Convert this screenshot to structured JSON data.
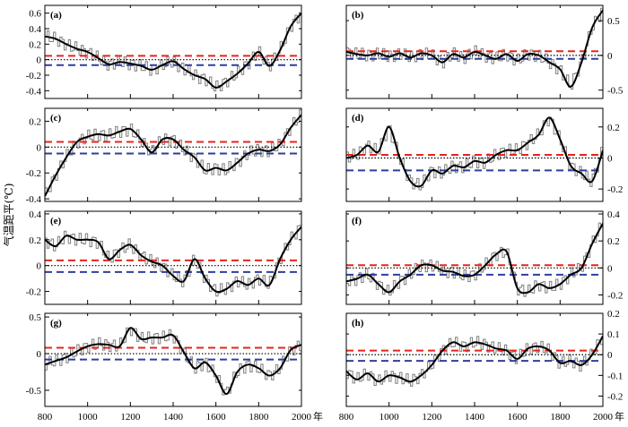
{
  "figure": {
    "ylabel": "气温距平(℃)",
    "xunit": "年",
    "xticks": [
      800,
      1000,
      1200,
      1400,
      1600,
      1800,
      2000
    ],
    "xlim": [
      800,
      2000
    ]
  },
  "colors": {
    "upper_ref": "#e8231c",
    "lower_ref": "#2b3f9e",
    "smooth": "#000000",
    "decadal": "#7f7f7f",
    "zero": "#000000"
  },
  "chart_data": [
    {
      "type": "line",
      "label": "(a)",
      "axis_side": "left",
      "ylim": [
        -0.5,
        0.7
      ],
      "yticks": [
        0.6,
        0.4,
        0.2,
        0,
        -0.2,
        -0.4
      ],
      "upper_ref": 0.05,
      "lower_ref": -0.07,
      "series": [
        {
          "name": "smoothed",
          "x": [
            800,
            850,
            900,
            950,
            1000,
            1050,
            1100,
            1150,
            1200,
            1250,
            1300,
            1350,
            1400,
            1450,
            1500,
            1550,
            1600,
            1650,
            1700,
            1750,
            1800,
            1850,
            1900,
            1950,
            2000
          ],
          "values": [
            0.3,
            0.27,
            0.2,
            0.14,
            0.1,
            0.02,
            -0.06,
            -0.03,
            -0.05,
            -0.08,
            -0.13,
            -0.07,
            -0.02,
            -0.12,
            -0.2,
            -0.25,
            -0.36,
            -0.28,
            -0.18,
            -0.05,
            0.1,
            -0.08,
            0.12,
            0.43,
            0.6
          ]
        }
      ]
    },
    {
      "type": "line",
      "label": "(b)",
      "axis_side": "right",
      "ylim": [
        -0.62,
        0.72
      ],
      "yticks": [
        0.5,
        0,
        -0.5
      ],
      "upper_ref": 0.06,
      "lower_ref": -0.05,
      "series": [
        {
          "name": "smoothed",
          "x": [
            800,
            850,
            900,
            950,
            1000,
            1050,
            1100,
            1150,
            1200,
            1250,
            1300,
            1350,
            1400,
            1450,
            1500,
            1550,
            1600,
            1650,
            1700,
            1750,
            1800,
            1850,
            1900,
            1950,
            2000
          ],
          "values": [
            0.05,
            0.02,
            0.0,
            0.03,
            -0.02,
            0.03,
            -0.03,
            0.03,
            0.0,
            -0.1,
            0.02,
            -0.03,
            0.05,
            0.0,
            -0.05,
            0.02,
            -0.08,
            0.02,
            0.0,
            -0.1,
            -0.2,
            -0.45,
            -0.1,
            0.4,
            0.65
          ]
        }
      ]
    },
    {
      "type": "line",
      "label": "(c)",
      "axis_side": "left",
      "ylim": [
        -0.42,
        0.3
      ],
      "yticks": [
        0.2,
        0,
        -0.2,
        -0.4
      ],
      "upper_ref": 0.04,
      "lower_ref": -0.05,
      "series": [
        {
          "name": "smoothed",
          "x": [
            800,
            850,
            900,
            950,
            1000,
            1050,
            1100,
            1150,
            1200,
            1250,
            1300,
            1350,
            1400,
            1450,
            1500,
            1550,
            1600,
            1650,
            1700,
            1750,
            1800,
            1850,
            1900,
            1950,
            2000
          ],
          "values": [
            -0.38,
            -0.22,
            -0.08,
            0.04,
            0.08,
            0.1,
            0.09,
            0.12,
            0.14,
            0.06,
            -0.04,
            0.06,
            0.06,
            -0.02,
            -0.08,
            -0.18,
            -0.16,
            -0.18,
            -0.12,
            -0.05,
            -0.02,
            -0.03,
            0.02,
            0.15,
            0.25
          ]
        }
      ]
    },
    {
      "type": "line",
      "label": "(d)",
      "axis_side": "right",
      "ylim": [
        -0.28,
        0.32
      ],
      "yticks": [
        0.2,
        0,
        -0.2
      ],
      "upper_ref": 0.02,
      "lower_ref": -0.08,
      "series": [
        {
          "name": "smoothed",
          "x": [
            800,
            850,
            900,
            950,
            1000,
            1050,
            1100,
            1150,
            1200,
            1250,
            1300,
            1350,
            1400,
            1450,
            1500,
            1550,
            1600,
            1650,
            1700,
            1750,
            1800,
            1850,
            1900,
            1950,
            2000
          ],
          "values": [
            0.0,
            0.02,
            0.08,
            0.04,
            0.2,
            0.0,
            -0.15,
            -0.18,
            -0.08,
            -0.1,
            -0.05,
            -0.06,
            -0.02,
            -0.03,
            0.02,
            0.05,
            0.05,
            0.1,
            0.15,
            0.26,
            0.12,
            -0.05,
            -0.1,
            -0.15,
            0.05
          ]
        }
      ]
    },
    {
      "type": "line",
      "label": "(e)",
      "axis_side": "left",
      "ylim": [
        -0.3,
        0.42
      ],
      "yticks": [
        0.4,
        0.2,
        0,
        -0.2
      ],
      "upper_ref": 0.04,
      "lower_ref": -0.05,
      "series": [
        {
          "name": "smoothed",
          "x": [
            800,
            850,
            900,
            950,
            1000,
            1050,
            1100,
            1150,
            1200,
            1250,
            1300,
            1350,
            1400,
            1450,
            1500,
            1550,
            1600,
            1650,
            1700,
            1750,
            1800,
            1850,
            1900,
            1950,
            2000
          ],
          "values": [
            0.2,
            0.15,
            0.23,
            0.2,
            0.2,
            0.18,
            0.05,
            0.12,
            0.16,
            0.08,
            0.03,
            0.0,
            -0.08,
            -0.12,
            0.05,
            -0.1,
            -0.2,
            -0.18,
            -0.12,
            -0.15,
            -0.1,
            -0.15,
            0.05,
            0.2,
            0.3
          ]
        }
      ]
    },
    {
      "type": "line",
      "label": "(f)",
      "axis_side": "right",
      "ylim": [
        -0.27,
        0.42
      ],
      "yticks": [
        0.4,
        0.2,
        0,
        -0.2
      ],
      "upper_ref": 0.02,
      "lower_ref": -0.05,
      "series": [
        {
          "name": "smoothed",
          "x": [
            800,
            850,
            900,
            950,
            1000,
            1050,
            1100,
            1150,
            1200,
            1250,
            1300,
            1350,
            1400,
            1450,
            1500,
            1550,
            1600,
            1650,
            1700,
            1750,
            1800,
            1850,
            1900,
            1950,
            2000
          ],
          "values": [
            -0.1,
            -0.08,
            -0.05,
            -0.12,
            -0.18,
            -0.1,
            -0.05,
            0.02,
            0.02,
            -0.02,
            -0.03,
            -0.06,
            -0.05,
            0.02,
            0.1,
            0.12,
            -0.15,
            -0.18,
            -0.12,
            -0.15,
            -0.12,
            -0.05,
            0.0,
            0.18,
            0.33
          ]
        }
      ]
    },
    {
      "type": "line",
      "label": "(g)",
      "axis_side": "left",
      "ylim": [
        -0.72,
        0.55
      ],
      "yticks": [
        0.5,
        0,
        -0.5
      ],
      "upper_ref": 0.08,
      "lower_ref": -0.08,
      "series": [
        {
          "name": "smoothed",
          "x": [
            800,
            850,
            900,
            950,
            1000,
            1050,
            1100,
            1150,
            1200,
            1250,
            1300,
            1350,
            1400,
            1450,
            1500,
            1550,
            1600,
            1650,
            1700,
            1750,
            1800,
            1850,
            1900,
            1950,
            2000
          ],
          "values": [
            -0.15,
            -0.1,
            -0.05,
            0.03,
            0.1,
            0.13,
            0.12,
            0.1,
            0.35,
            0.2,
            0.22,
            0.22,
            0.25,
            0.02,
            -0.2,
            -0.12,
            -0.3,
            -0.55,
            -0.25,
            -0.15,
            -0.2,
            -0.3,
            -0.2,
            0.05,
            0.12
          ]
        }
      ]
    },
    {
      "type": "line",
      "label": "(h)",
      "axis_side": "right",
      "ylim": [
        -0.25,
        0.2
      ],
      "yticks": [
        0.2,
        0.1,
        0,
        -0.1,
        -0.2
      ],
      "upper_ref": 0.02,
      "lower_ref": -0.03,
      "series": [
        {
          "name": "smoothed",
          "x": [
            800,
            850,
            900,
            950,
            1000,
            1050,
            1100,
            1150,
            1200,
            1250,
            1300,
            1350,
            1400,
            1450,
            1500,
            1550,
            1600,
            1650,
            1700,
            1750,
            1800,
            1850,
            1900,
            1950,
            2000
          ],
          "values": [
            -0.08,
            -0.12,
            -0.09,
            -0.13,
            -0.1,
            -0.11,
            -0.13,
            -0.1,
            -0.05,
            0.02,
            0.06,
            0.04,
            0.06,
            0.05,
            0.03,
            0.02,
            -0.02,
            0.03,
            0.04,
            0.02,
            -0.04,
            -0.03,
            -0.05,
            0.0,
            0.09
          ]
        }
      ]
    }
  ]
}
